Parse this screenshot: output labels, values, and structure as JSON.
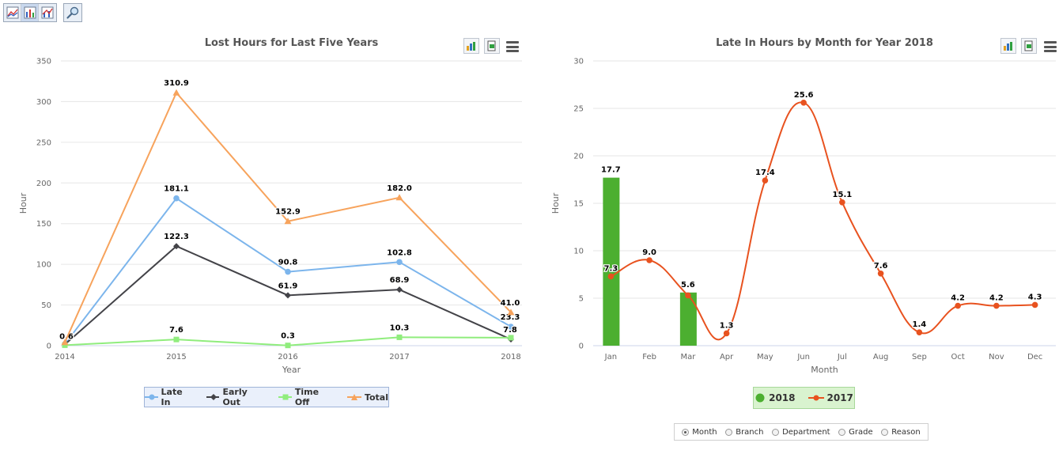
{
  "toolbar": {
    "buttons": [
      {
        "icon": "line-chart-icon",
        "active": false
      },
      {
        "icon": "bar-chart-icon",
        "active": true
      },
      {
        "icon": "combo-chart-icon",
        "active": false
      }
    ],
    "zoom_icon": "magnifier-icon"
  },
  "chart_data": [
    {
      "type": "line",
      "title": "Lost Hours for Last Five Years",
      "xlabel": "Year",
      "ylabel": "Hour",
      "categories": [
        "2014",
        "2015",
        "2016",
        "2017",
        "2018"
      ],
      "ylim": [
        0,
        350
      ],
      "yticks": [
        0,
        50,
        100,
        150,
        200,
        250,
        300,
        350
      ],
      "grid": true,
      "legend_position": "bottom",
      "series": [
        {
          "name": "Late In",
          "color": "#7cb5ec",
          "marker": "circle",
          "values": [
            2.0,
            181.1,
            90.8,
            102.8,
            23.3
          ],
          "labels": [
            "",
            "181.1",
            "90.8",
            "102.8",
            "23.3"
          ]
        },
        {
          "name": "Early Out",
          "color": "#434348",
          "marker": "diamond",
          "values": [
            1.5,
            122.3,
            61.9,
            68.9,
            7.8
          ],
          "labels": [
            "",
            "122.3",
            "61.9",
            "68.9",
            "7.8"
          ]
        },
        {
          "name": "Time Off",
          "color": "#90ed7d",
          "marker": "square",
          "values": [
            0.6,
            7.6,
            0.3,
            10.3,
            9.8
          ],
          "labels": [
            "0.6",
            "7.6",
            "0.3",
            "10.3",
            ""
          ]
        },
        {
          "name": "Total",
          "color": "#f7a35c",
          "marker": "triangle",
          "values": [
            4.1,
            310.9,
            152.9,
            182.0,
            41.0
          ],
          "labels": [
            "",
            "310.9",
            "152.9",
            "182.0",
            "41.0"
          ]
        }
      ]
    },
    {
      "type": "bar",
      "title": "Late In Hours by Month for Year 2018",
      "xlabel": "Month",
      "ylabel": "Hour",
      "categories": [
        "Jan",
        "Feb",
        "Mar",
        "Apr",
        "May",
        "Jun",
        "Jul",
        "Aug",
        "Sep",
        "Oct",
        "Nov",
        "Dec"
      ],
      "ylim": [
        0,
        30
      ],
      "yticks": [
        0,
        5,
        10,
        15,
        20,
        25,
        30
      ],
      "grid": true,
      "legend_position": "bottom",
      "series": [
        {
          "name": "2018",
          "type": "bar",
          "color": "#4caf30",
          "values": [
            17.7,
            null,
            5.6,
            null,
            null,
            null,
            null,
            null,
            null,
            null,
            null,
            null
          ],
          "labels": [
            "17.7",
            "",
            "5.6",
            "",
            "",
            "",
            "",
            "",
            "",
            "",
            "",
            ""
          ]
        },
        {
          "name": "2017",
          "type": "spline",
          "color": "#e8521f",
          "values": [
            7.3,
            9.0,
            5.3,
            1.3,
            17.4,
            25.6,
            15.1,
            7.6,
            1.4,
            4.2,
            4.2,
            4.3
          ],
          "labels": [
            "7.3",
            "9.0",
            "",
            "1.3",
            "17.4",
            "25.6",
            "15.1",
            "7.6",
            "1.4",
            "4.2",
            "4.2",
            "4.3"
          ]
        }
      ]
    }
  ],
  "grouping": {
    "options": [
      "Month",
      "Branch",
      "Department",
      "Grade",
      "Reason"
    ],
    "selected": "Month"
  }
}
